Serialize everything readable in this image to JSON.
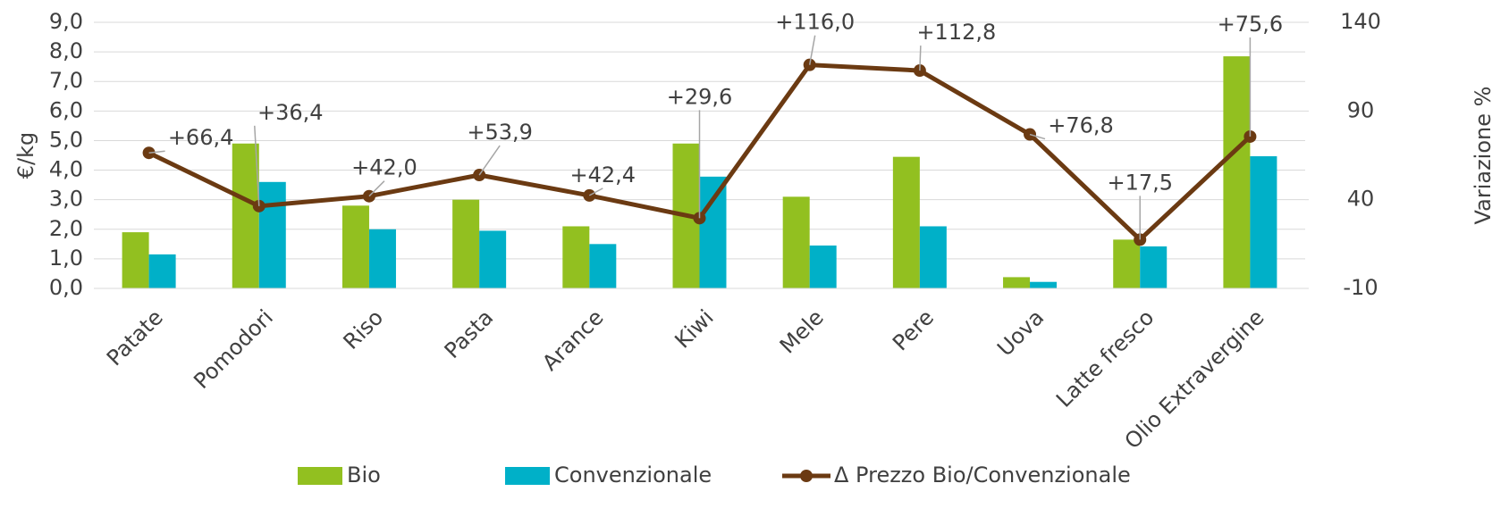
{
  "chart_data": {
    "type": "bar",
    "categories": [
      "Patate",
      "Pomodori",
      "Riso",
      "Pasta",
      "Arance",
      "Kiwi",
      "Mele",
      "Pere",
      "Uova",
      "Latte fresco",
      "Olio Extravergine"
    ],
    "ylabel": "€/kg",
    "y2label": "Variazione %",
    "ylim": [
      0,
      9
    ],
    "yticks": [
      {
        "value": 0,
        "label": "0,0"
      },
      {
        "value": 1,
        "label": "1,0"
      },
      {
        "value": 2,
        "label": "2,0"
      },
      {
        "value": 3,
        "label": "3,0"
      },
      {
        "value": 4,
        "label": "4,0"
      },
      {
        "value": 5,
        "label": "5,0"
      },
      {
        "value": 6,
        "label": "6,0"
      },
      {
        "value": 7,
        "label": "7,0"
      },
      {
        "value": 8,
        "label": "8,0"
      },
      {
        "value": 9,
        "label": "9,0"
      }
    ],
    "y2lim": [
      -10,
      140
    ],
    "y2ticks": [
      -10,
      40,
      90,
      140
    ],
    "series": [
      {
        "name": "Bio",
        "color": "#92c020",
        "values": [
          1.9,
          4.9,
          2.8,
          3.0,
          2.1,
          4.9,
          3.1,
          4.45,
          0.38,
          1.65,
          7.85
        ]
      },
      {
        "name": "Convenzionale",
        "color": "#00b0c8",
        "values": [
          1.15,
          3.6,
          2.0,
          1.95,
          1.5,
          3.78,
          1.45,
          2.1,
          0.22,
          1.42,
          4.47
        ]
      },
      {
        "name": "Δ Prezzo Bio/Convenzionale",
        "color": "#6b3a12",
        "type": "line",
        "axis": "y2",
        "values": [
          66.4,
          36.4,
          42.0,
          53.9,
          42.4,
          29.6,
          116.0,
          112.8,
          76.8,
          17.5,
          75.6
        ],
        "value_labels": [
          "+66,4",
          "+36,4",
          "+42,0",
          "+53,9",
          "+42,4",
          "+29,6",
          "+116,0",
          "+112,8",
          "+76,8",
          "+17,5",
          "+75,6"
        ]
      }
    ],
    "legend": "bottom"
  }
}
